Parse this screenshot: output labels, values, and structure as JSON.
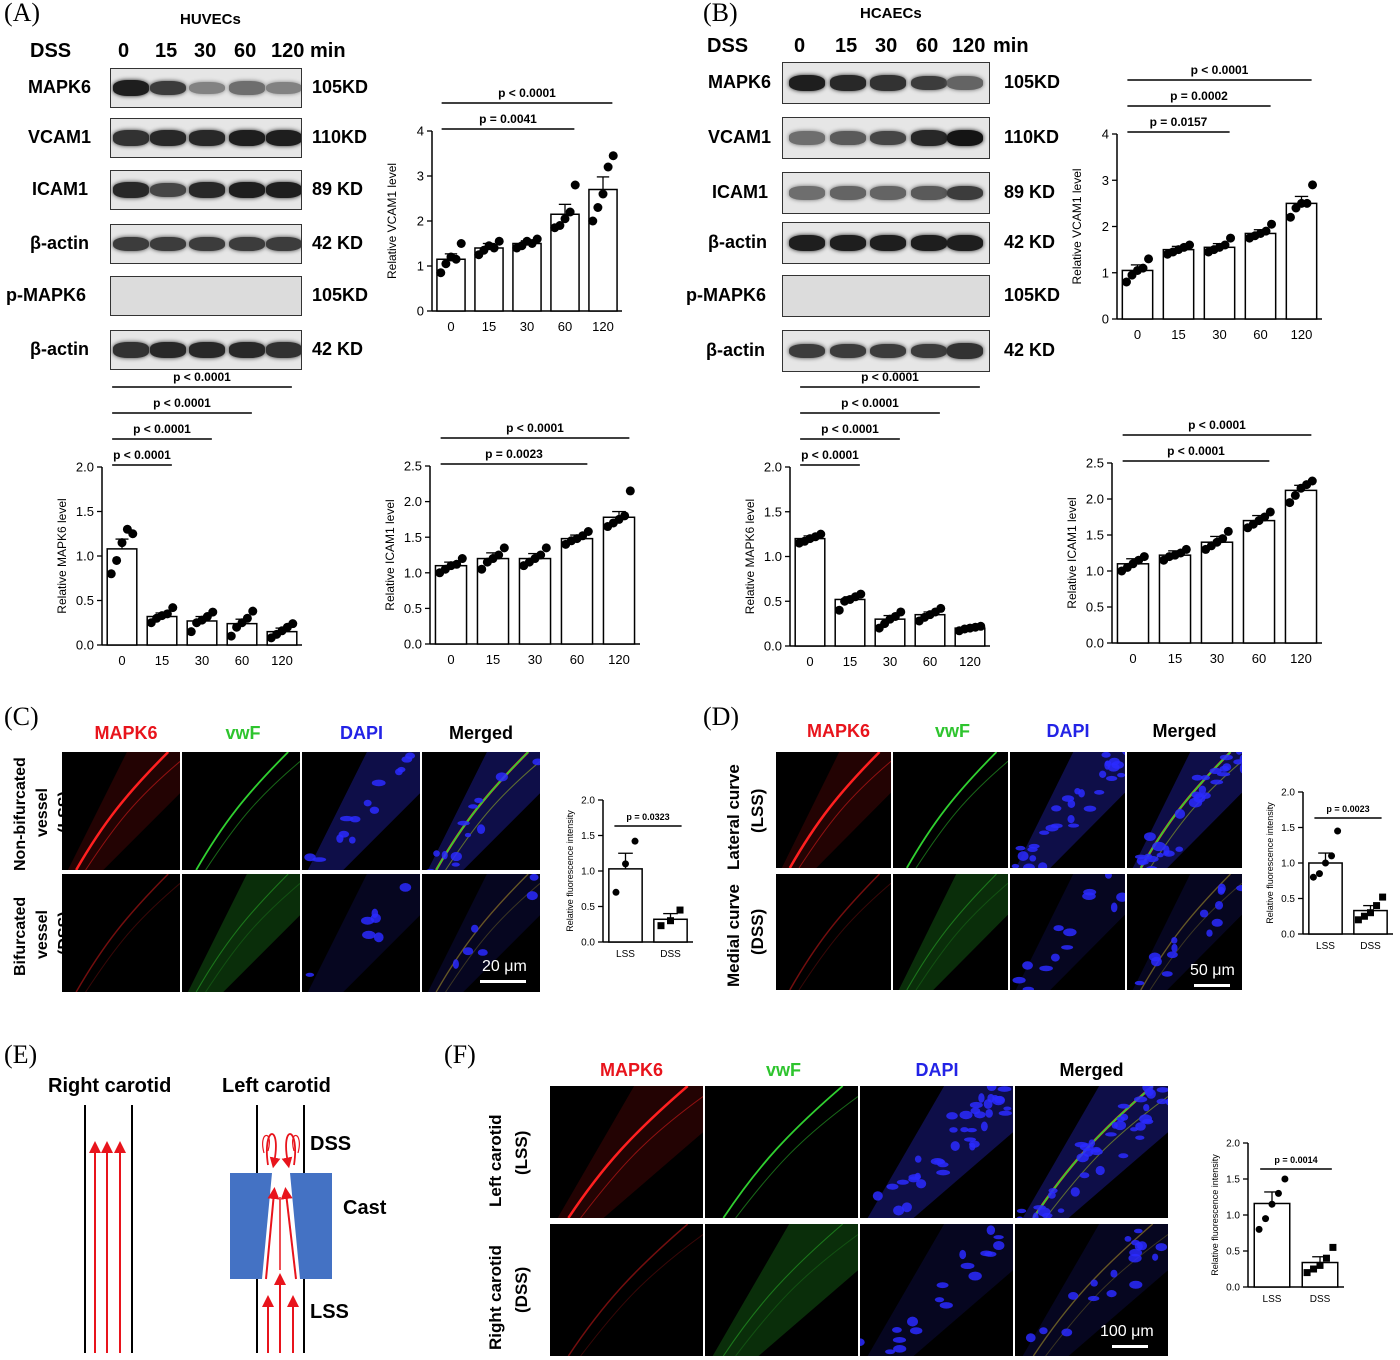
{
  "panels": {
    "A": {
      "label": "(A)",
      "cell": "HUVECs",
      "dss": "DSS",
      "times": [
        "0",
        "15",
        "30",
        "60",
        "120"
      ],
      "unit": "min",
      "rows": [
        {
          "name": "MAPK6",
          "kd": "105KD",
          "intensity": [
            0.95,
            0.8,
            0.45,
            0.55,
            0.45
          ]
        },
        {
          "name": "VCAM1",
          "kd": "110KD",
          "intensity": [
            0.85,
            0.9,
            0.9,
            0.95,
            0.95
          ]
        },
        {
          "name": "ICAM1",
          "kd": "89 KD",
          "intensity": [
            0.9,
            0.75,
            0.9,
            0.95,
            0.95
          ]
        },
        {
          "name": "β-actin",
          "kd": "42 KD",
          "intensity": [
            0.8,
            0.8,
            0.8,
            0.8,
            0.8
          ]
        },
        {
          "name": "p-MAPK6",
          "kd": "105KD",
          "intensity": [
            0.05,
            0.05,
            0.05,
            0.05,
            0.05
          ]
        },
        {
          "name": "β-actin",
          "kd": "42 KD",
          "intensity": [
            0.85,
            0.9,
            0.9,
            0.9,
            0.85
          ]
        }
      ]
    },
    "B": {
      "label": "(B)",
      "cell": "HCAECs",
      "dss": "DSS",
      "times": [
        "0",
        "15",
        "30",
        "60",
        "120"
      ],
      "unit": "min",
      "rows": [
        {
          "name": "MAPK6",
          "kd": "105KD",
          "intensity": [
            0.95,
            0.9,
            0.85,
            0.8,
            0.6
          ]
        },
        {
          "name": "VCAM1",
          "kd": "110KD",
          "intensity": [
            0.55,
            0.65,
            0.75,
            0.9,
            1.0
          ]
        },
        {
          "name": "ICAM1",
          "kd": "89 KD",
          "intensity": [
            0.55,
            0.6,
            0.6,
            0.65,
            0.8
          ]
        },
        {
          "name": "β-actin",
          "kd": "42 KD",
          "intensity": [
            0.95,
            0.95,
            0.95,
            0.95,
            0.95
          ]
        },
        {
          "name": "p-MAPK6",
          "kd": "105KD",
          "intensity": [
            0.02,
            0.02,
            0.02,
            0.02,
            0.02
          ]
        },
        {
          "name": "β-actin",
          "kd": "42 KD",
          "intensity": [
            0.8,
            0.8,
            0.8,
            0.8,
            0.85
          ]
        }
      ]
    },
    "C": {
      "label": "(C)",
      "channels": [
        "MAPK6",
        "vwF",
        "DAPI",
        "Merged"
      ],
      "row_labels": [
        [
          "Non-bifurcated",
          "vessel",
          "(LSS)"
        ],
        [
          "Bifurcated",
          "vessel",
          "(DSS)"
        ]
      ],
      "scale": "20 μm"
    },
    "D": {
      "label": "(D)",
      "channels": [
        "MAPK6",
        "vwF",
        "DAPI",
        "Merged"
      ],
      "row_labels": [
        [
          "Lateral curve",
          "(LSS)"
        ],
        [
          "Medial curve",
          "(DSS)"
        ]
      ],
      "scale": "50 μm"
    },
    "E": {
      "label": "(E)",
      "right": "Right carotid",
      "left": "Left carotid",
      "dss": "DSS",
      "cast": "Cast",
      "lss": "LSS"
    },
    "F": {
      "label": "(F)",
      "channels": [
        "MAPK6",
        "vwF",
        "DAPI",
        "Merged"
      ],
      "row_labels": [
        [
          "Left carotid",
          "(LSS)"
        ],
        [
          "Right carotid",
          "(DSS)"
        ]
      ],
      "scale": "100 μm"
    }
  },
  "colors": {
    "mapk6": "#e8141c",
    "vwf": "#2ec42e",
    "dapi": "#2323e6",
    "cast": "#4472c4",
    "arrow": "#e8141c"
  },
  "chart_data": [
    {
      "id": "A-vcam1",
      "type": "bar",
      "categories": [
        "0",
        "15",
        "30",
        "60",
        "120"
      ],
      "values": [
        1.15,
        1.4,
        1.5,
        2.15,
        2.7
      ],
      "errors": [
        0.12,
        0.1,
        0.06,
        0.22,
        0.28
      ],
      "points": [
        [
          0.85,
          1.05,
          1.2,
          1.15,
          1.5
        ],
        [
          1.25,
          1.35,
          1.45,
          1.4,
          1.55
        ],
        [
          1.4,
          1.45,
          1.55,
          1.5,
          1.6
        ],
        [
          1.85,
          1.9,
          2.05,
          2.2,
          2.8
        ],
        [
          2.0,
          2.3,
          2.6,
          3.2,
          3.45
        ]
      ],
      "ylabel": "Relative VCAM1 level",
      "ylim": [
        0,
        4
      ],
      "yticks": [
        "0",
        "1",
        "2",
        "3",
        "4"
      ],
      "pvals": [
        {
          "text": "p = 0.0041",
          "from": 0,
          "to": 3
        },
        {
          "text": "p < 0.0001",
          "from": 0,
          "to": 4
        }
      ]
    },
    {
      "id": "B-vcam1",
      "type": "bar",
      "categories": [
        "0",
        "15",
        "30",
        "60",
        "120"
      ],
      "values": [
        1.05,
        1.5,
        1.55,
        1.85,
        2.5
      ],
      "errors": [
        0.12,
        0.07,
        0.08,
        0.08,
        0.15
      ],
      "points": [
        [
          0.8,
          0.95,
          1.05,
          1.1,
          1.3
        ],
        [
          1.4,
          1.45,
          1.5,
          1.55,
          1.6
        ],
        [
          1.45,
          1.5,
          1.55,
          1.6,
          1.75
        ],
        [
          1.75,
          1.8,
          1.85,
          1.9,
          2.05
        ],
        [
          2.2,
          2.4,
          2.5,
          2.5,
          2.9
        ]
      ],
      "ylabel": "Relative VCAM1 level",
      "ylim": [
        0,
        4
      ],
      "yticks": [
        "0",
        "1",
        "2",
        "3",
        "4"
      ],
      "pvals": [
        {
          "text": "p = 0.0157",
          "from": 0,
          "to": 2
        },
        {
          "text": "p = 0.0002",
          "from": 0,
          "to": 3
        },
        {
          "text": "p < 0.0001",
          "from": 0,
          "to": 4
        }
      ]
    },
    {
      "id": "A-mapk6",
      "type": "bar",
      "categories": [
        "0",
        "15",
        "30",
        "60",
        "120"
      ],
      "values": [
        1.08,
        0.32,
        0.27,
        0.24,
        0.15
      ],
      "errors": [
        0.11,
        0.04,
        0.05,
        0.05,
        0.04
      ],
      "points": [
        [
          0.8,
          0.95,
          1.15,
          1.3,
          1.25
        ],
        [
          0.25,
          0.3,
          0.33,
          0.35,
          0.42
        ],
        [
          0.15,
          0.25,
          0.28,
          0.32,
          0.37
        ],
        [
          0.1,
          0.2,
          0.25,
          0.3,
          0.38
        ],
        [
          0.08,
          0.12,
          0.16,
          0.2,
          0.24
        ]
      ],
      "ylabel": "Relative MAPK6 level",
      "ylim": [
        0,
        2
      ],
      "yticks": [
        "0.0",
        "0.5",
        "1.0",
        "1.5",
        "2.0"
      ],
      "pvals": [
        {
          "text": "p < 0.0001",
          "from": 0,
          "to": 1
        },
        {
          "text": "p < 0.0001",
          "from": 0,
          "to": 2
        },
        {
          "text": "p < 0.0001",
          "from": 0,
          "to": 3
        },
        {
          "text": "p < 0.0001",
          "from": 0,
          "to": 4
        }
      ]
    },
    {
      "id": "A-icam1",
      "type": "bar",
      "categories": [
        "0",
        "15",
        "30",
        "60",
        "120"
      ],
      "values": [
        1.1,
        1.2,
        1.2,
        1.48,
        1.78
      ],
      "errors": [
        0.05,
        0.08,
        0.07,
        0.05,
        0.08
      ],
      "points": [
        [
          1.0,
          1.05,
          1.1,
          1.12,
          1.2
        ],
        [
          1.05,
          1.15,
          1.2,
          1.25,
          1.35
        ],
        [
          1.1,
          1.15,
          1.2,
          1.25,
          1.35
        ],
        [
          1.4,
          1.45,
          1.48,
          1.52,
          1.58
        ],
        [
          1.65,
          1.7,
          1.75,
          1.8,
          2.15
        ]
      ],
      "ylabel": "Relative ICAM1 level",
      "ylim": [
        0,
        2.5
      ],
      "yticks": [
        "0.0",
        "0.5",
        "1.0",
        "1.5",
        "2.0",
        "2.5"
      ],
      "pvals": [
        {
          "text": "p = 0.0023",
          "from": 0,
          "to": 3
        },
        {
          "text": "p < 0.0001",
          "from": 0,
          "to": 4
        }
      ]
    },
    {
      "id": "B-mapk6",
      "type": "bar",
      "categories": [
        "0",
        "15",
        "30",
        "60",
        "120"
      ],
      "values": [
        1.2,
        0.52,
        0.3,
        0.35,
        0.2
      ],
      "errors": [
        0.03,
        0.03,
        0.04,
        0.03,
        0.02
      ],
      "points": [
        [
          1.15,
          1.17,
          1.2,
          1.22,
          1.25
        ],
        [
          0.4,
          0.5,
          0.52,
          0.55,
          0.58
        ],
        [
          0.2,
          0.25,
          0.3,
          0.33,
          0.38
        ],
        [
          0.28,
          0.32,
          0.35,
          0.38,
          0.42
        ],
        [
          0.17,
          0.19,
          0.2,
          0.21,
          0.22
        ]
      ],
      "ylabel": "Relative MAPK6 level",
      "ylim": [
        0,
        2
      ],
      "yticks": [
        "0.0",
        "0.5",
        "1.0",
        "1.5",
        "2.0"
      ],
      "pvals": [
        {
          "text": "p < 0.0001",
          "from": 0,
          "to": 1
        },
        {
          "text": "p < 0.0001",
          "from": 0,
          "to": 2
        },
        {
          "text": "p < 0.0001",
          "from": 0,
          "to": 3
        },
        {
          "text": "p < 0.0001",
          "from": 0,
          "to": 4
        }
      ]
    },
    {
      "id": "B-icam1",
      "type": "bar",
      "categories": [
        "0",
        "15",
        "30",
        "60",
        "120"
      ],
      "values": [
        1.1,
        1.22,
        1.4,
        1.7,
        2.12
      ],
      "errors": [
        0.07,
        0.06,
        0.08,
        0.07,
        0.07
      ],
      "points": [
        [
          1.0,
          1.05,
          1.1,
          1.15,
          1.2
        ],
        [
          1.15,
          1.2,
          1.22,
          1.25,
          1.3
        ],
        [
          1.3,
          1.35,
          1.4,
          1.45,
          1.55
        ],
        [
          1.6,
          1.65,
          1.7,
          1.75,
          1.82
        ],
        [
          1.95,
          2.05,
          2.15,
          2.2,
          2.25
        ]
      ],
      "ylabel": "Relative ICAM1 level",
      "ylim": [
        0,
        2.5
      ],
      "yticks": [
        "0.0",
        "0.5",
        "1.0",
        "1.5",
        "2.0",
        "2.5"
      ],
      "pvals": [
        {
          "text": "p < 0.0001",
          "from": 0,
          "to": 3
        },
        {
          "text": "p < 0.0001",
          "from": 0,
          "to": 4
        }
      ]
    },
    {
      "id": "C-fluor",
      "type": "bar",
      "categories": [
        "LSS",
        "DSS"
      ],
      "values": [
        1.03,
        0.32
      ],
      "errors": [
        0.22,
        0.08
      ],
      "points": [
        [
          0.7,
          1.1,
          1.42
        ],
        [
          0.23,
          0.3,
          0.45
        ]
      ],
      "ylabel": "Relative fluorescence intensity",
      "ylim": [
        0,
        2
      ],
      "yticks": [
        "0.0",
        "0.5",
        "1.0",
        "1.5",
        "2.0"
      ],
      "pvals": [
        {
          "text": "p = 0.0323",
          "from": 0,
          "to": 1
        }
      ]
    },
    {
      "id": "D-fluor",
      "type": "bar",
      "categories": [
        "LSS",
        "DSS"
      ],
      "values": [
        1.0,
        0.33
      ],
      "errors": [
        0.14,
        0.07
      ],
      "points": [
        [
          0.8,
          0.85,
          1.0,
          1.1,
          1.45
        ],
        [
          0.2,
          0.25,
          0.3,
          0.4,
          0.52
        ]
      ],
      "ylabel": "Relative fluorescence intensity",
      "ylim": [
        0,
        2
      ],
      "yticks": [
        "0.0",
        "0.5",
        "1.0",
        "1.5",
        "2.0"
      ],
      "pvals": [
        {
          "text": "p = 0.0023",
          "from": 0,
          "to": 1
        }
      ]
    },
    {
      "id": "F-fluor",
      "type": "bar",
      "categories": [
        "LSS",
        "DSS"
      ],
      "values": [
        1.16,
        0.34
      ],
      "errors": [
        0.16,
        0.08
      ],
      "points": [
        [
          0.8,
          0.95,
          1.15,
          1.3,
          1.5
        ],
        [
          0.2,
          0.25,
          0.3,
          0.4,
          0.55
        ]
      ],
      "ylabel": "Relative fluorescence intensity",
      "ylim": [
        0,
        2
      ],
      "yticks": [
        "0.0",
        "0.5",
        "1.0",
        "1.5",
        "2.0"
      ],
      "pvals": [
        {
          "text": "p = 0.0014",
          "from": 0,
          "to": 1
        }
      ]
    }
  ]
}
